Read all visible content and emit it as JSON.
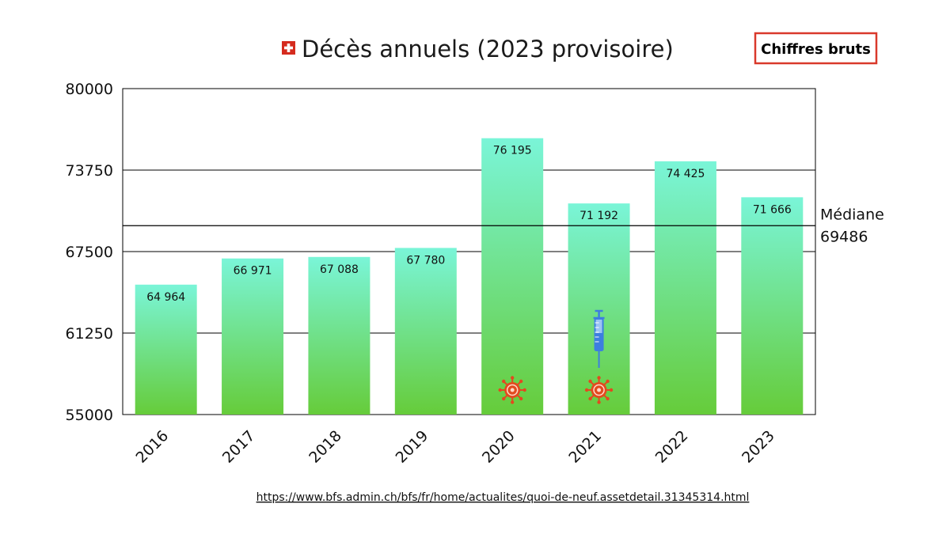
{
  "chart_data": {
    "type": "bar",
    "title": "Décès annuels (2023 provisoire)",
    "title_icon": "swiss-flag-icon",
    "categories": [
      "2016",
      "2017",
      "2018",
      "2019",
      "2020",
      "2021",
      "2022",
      "2023"
    ],
    "values": [
      64964,
      66971,
      67088,
      67780,
      76195,
      71192,
      74425,
      71666
    ],
    "value_labels": [
      "64 964",
      "66 971",
      "67 088",
      "67 780",
      "76 195",
      "71 192",
      "74 425",
      "71 666"
    ],
    "ylim": [
      55000,
      80000
    ],
    "yticks": [
      55000,
      61250,
      67500,
      73750,
      80000
    ],
    "ytick_labels": [
      "55000",
      "61250",
      "67500",
      "73750",
      "80000"
    ],
    "xlabel": "",
    "ylabel": "",
    "grid": true,
    "median": {
      "label": "Médiane",
      "value": 69486,
      "value_label": "69486"
    },
    "annotations": [
      {
        "category": "2020",
        "icon": "virus-icon"
      },
      {
        "category": "2021",
        "icon": "virus-icon"
      },
      {
        "category": "2021",
        "icon": "syringe-icon"
      }
    ],
    "colors": {
      "bar_top": "#7af5d8",
      "bar_bottom": "#66cc3a",
      "virus": "#e24a1f",
      "syringe": "#3d7ee0",
      "badge_border": "#d9392b",
      "flag": "#d52b1e"
    }
  },
  "badge": {
    "label": "Chiffres bruts"
  },
  "source": {
    "url": "https://www.bfs.admin.ch/bfs/fr/home/actualites/quoi-de-neuf.assetdetail.31345314.html"
  }
}
